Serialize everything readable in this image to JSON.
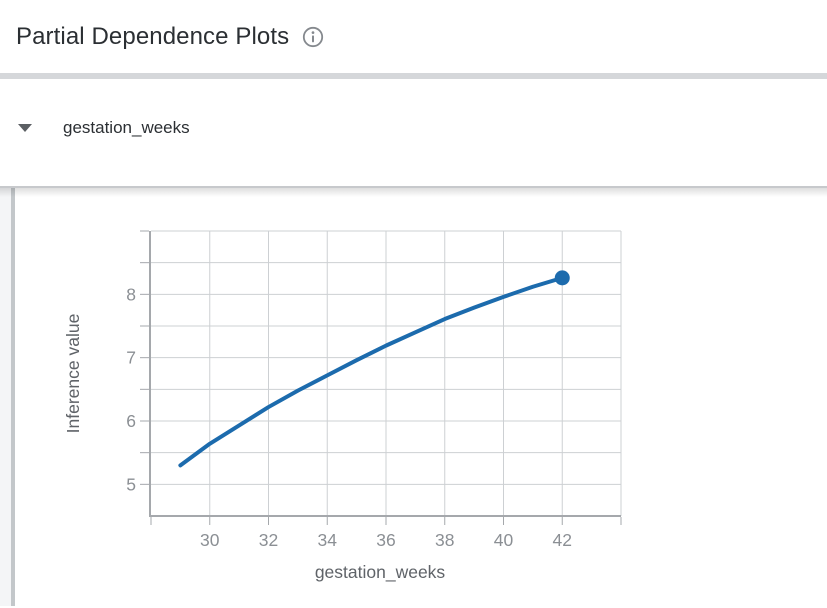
{
  "header": {
    "title": "Partial Dependence Plots",
    "info_icon": "info-icon"
  },
  "section": {
    "feature_label": "gestation_weeks",
    "caret_icon": "caret-down-icon",
    "state": "expanded"
  },
  "colors": {
    "accent_line": "#1c6bad",
    "gridline": "#cdd0d3",
    "axis": "#a5a8ac",
    "tick_label": "#8b8f94",
    "axis_title": "#5f6368",
    "divider": "#d5d7da",
    "scrollbar": "#c3c7ca",
    "title_text": "#2b2f33"
  },
  "chart_data": {
    "type": "line",
    "title": "",
    "xlabel": "gestation_weeks",
    "ylabel": "Inference value",
    "x": [
      29,
      30,
      31,
      32,
      33,
      34,
      35,
      36,
      37,
      38,
      39,
      40,
      41,
      42
    ],
    "y": [
      5.3,
      5.64,
      5.93,
      6.22,
      6.48,
      6.72,
      6.96,
      7.19,
      7.4,
      7.61,
      7.79,
      7.96,
      8.12,
      8.26
    ],
    "xlim": [
      28,
      44
    ],
    "ylim": [
      4.5,
      9.0
    ],
    "x_grid_step": 2,
    "y_grid_step": 0.5,
    "x_tick_labels": [
      "30",
      "32",
      "34",
      "36",
      "38",
      "40",
      "42"
    ],
    "x_tick_values": [
      30,
      32,
      34,
      36,
      38,
      40,
      42
    ],
    "y_tick_labels": [
      "5",
      "6",
      "7",
      "8"
    ],
    "y_tick_values": [
      5,
      6,
      7,
      8
    ],
    "grid": true,
    "legend_position": "none",
    "end_marker": true,
    "end_marker_point": {
      "x": 42,
      "y": 8.26
    }
  }
}
